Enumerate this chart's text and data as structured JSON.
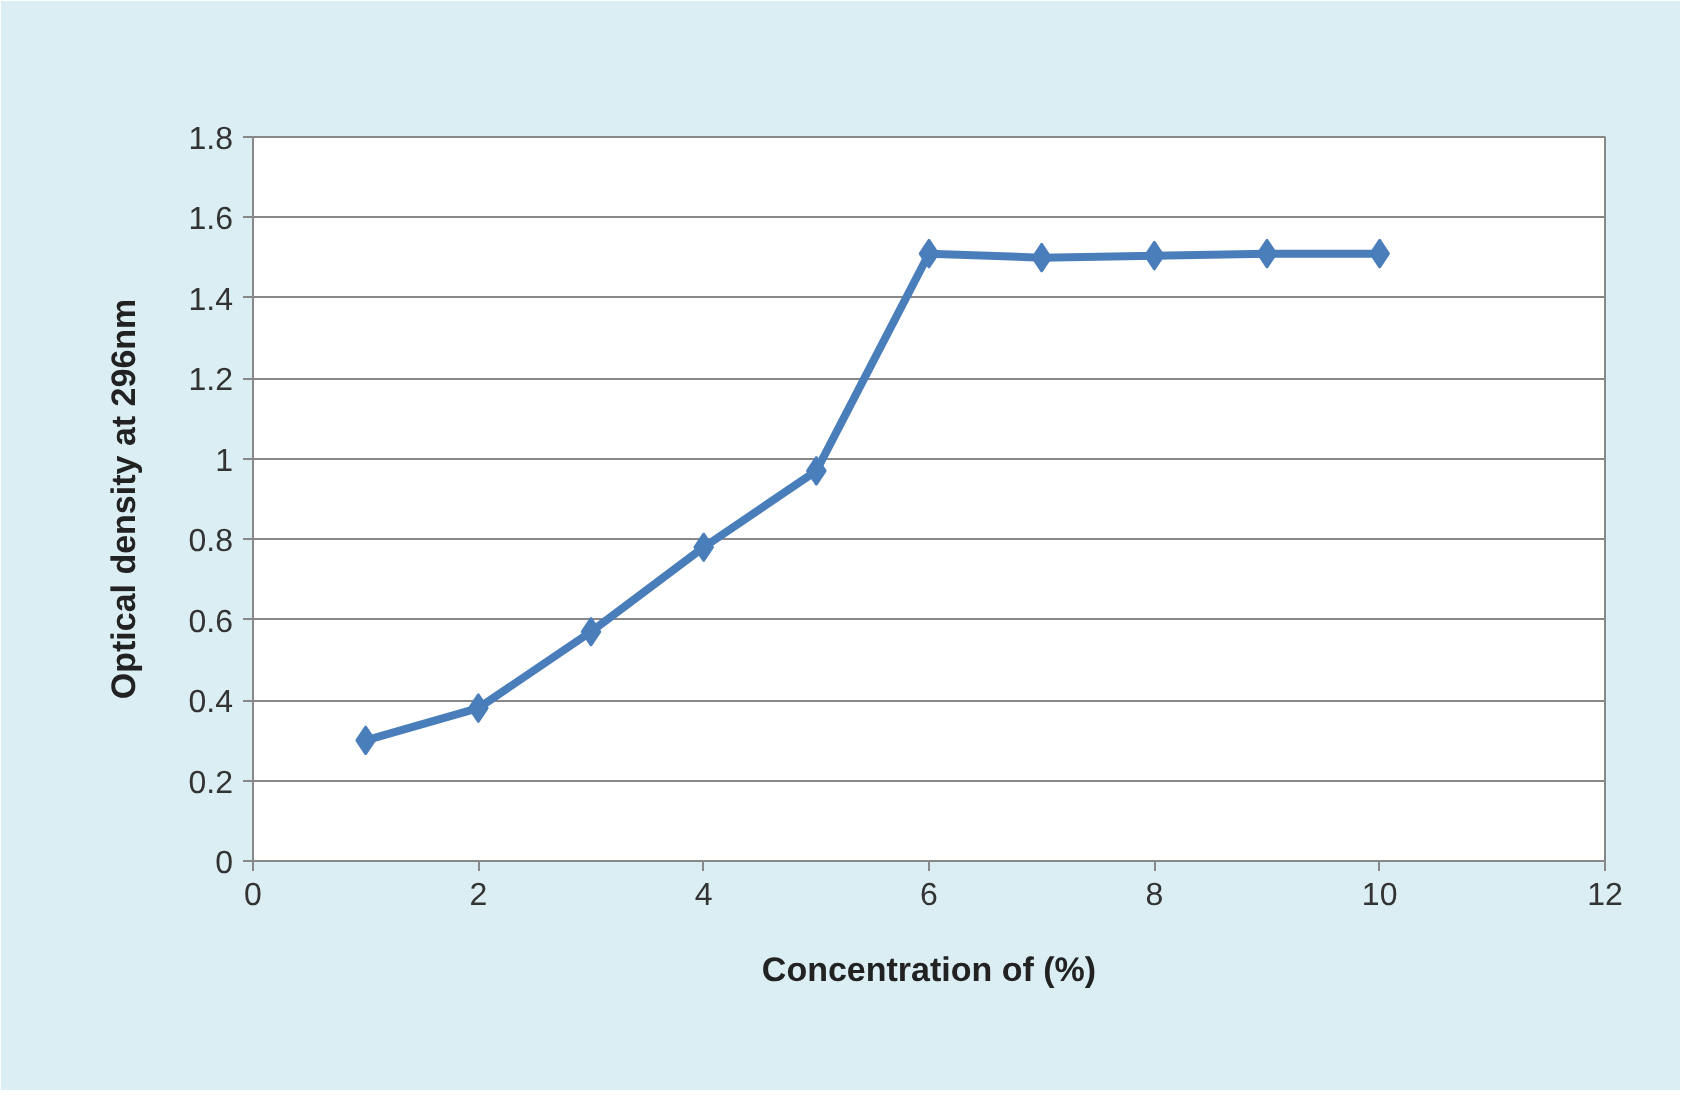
{
  "chart_data": {
    "type": "line",
    "xlabel": "Concentration of (%)",
    "ylabel": "Optical density at 296nm",
    "x": [
      1,
      2,
      3,
      4,
      5,
      6,
      7,
      8,
      9,
      10
    ],
    "series": [
      {
        "color": "#4a7ebb",
        "values": [
          0.3,
          0.38,
          0.57,
          0.78,
          0.97,
          1.51,
          1.5,
          1.505,
          1.51,
          1.51
        ]
      }
    ],
    "xlim": [
      0,
      12
    ],
    "xticks": [
      0,
      2,
      4,
      6,
      8,
      10,
      12
    ],
    "ylim": [
      0,
      1.8
    ],
    "yticks": [
      0,
      0.2,
      0.4,
      0.6,
      0.8,
      1,
      1.2,
      1.4,
      1.6,
      1.8
    ],
    "grid": "y",
    "marker": "diamond",
    "line_style": "solid"
  }
}
